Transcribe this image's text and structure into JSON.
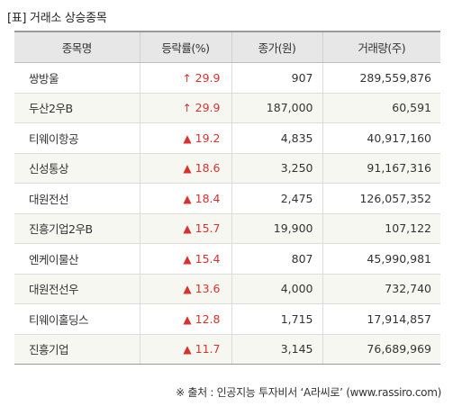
{
  "title": "[표] 거래소 상승종목",
  "columns": [
    "종목명",
    "등락률(%)",
    "종가(원)",
    "거래량(주)"
  ],
  "rows": [
    {
      "name": "쌍방울",
      "mark": "↑",
      "mark_icon": "upper-limit-arrow-icon",
      "rate": "29.9",
      "price": "907",
      "volume": "289,559,876"
    },
    {
      "name": "두산2우B",
      "mark": "↑",
      "mark_icon": "upper-limit-arrow-icon",
      "rate": "29.9",
      "price": "187,000",
      "volume": "60,591"
    },
    {
      "name": "티웨이항공",
      "mark": "▲",
      "mark_icon": "up-triangle-icon",
      "rate": "19.2",
      "price": "4,835",
      "volume": "40,917,160"
    },
    {
      "name": "신성통상",
      "mark": "▲",
      "mark_icon": "up-triangle-icon",
      "rate": "18.6",
      "price": "3,250",
      "volume": "91,167,316"
    },
    {
      "name": "대원전선",
      "mark": "▲",
      "mark_icon": "up-triangle-icon",
      "rate": "18.4",
      "price": "2,475",
      "volume": "126,057,352"
    },
    {
      "name": "진흥기업2우B",
      "mark": "▲",
      "mark_icon": "up-triangle-icon",
      "rate": "15.7",
      "price": "19,900",
      "volume": "107,122"
    },
    {
      "name": "엔케이물산",
      "mark": "▲",
      "mark_icon": "up-triangle-icon",
      "rate": "15.4",
      "price": "807",
      "volume": "45,990,981"
    },
    {
      "name": "대원전선우",
      "mark": "▲",
      "mark_icon": "up-triangle-icon",
      "rate": "13.6",
      "price": "4,000",
      "volume": "732,740"
    },
    {
      "name": "티웨이홀딩스",
      "mark": "▲",
      "mark_icon": "up-triangle-icon",
      "rate": "12.8",
      "price": "1,715",
      "volume": "17,914,857"
    },
    {
      "name": "진흥기업",
      "mark": "▲",
      "mark_icon": "up-triangle-icon",
      "rate": "11.7",
      "price": "3,145",
      "volume": "76,689,969"
    }
  ],
  "footer": "※ 출처 : 인공지능 투자비서 ‘A라씨로’ (www.rassiro.com)",
  "colors": {
    "rise": "#d9322e",
    "header_bg": "#e7e7e7",
    "alt_row": "#f7f7f2"
  }
}
